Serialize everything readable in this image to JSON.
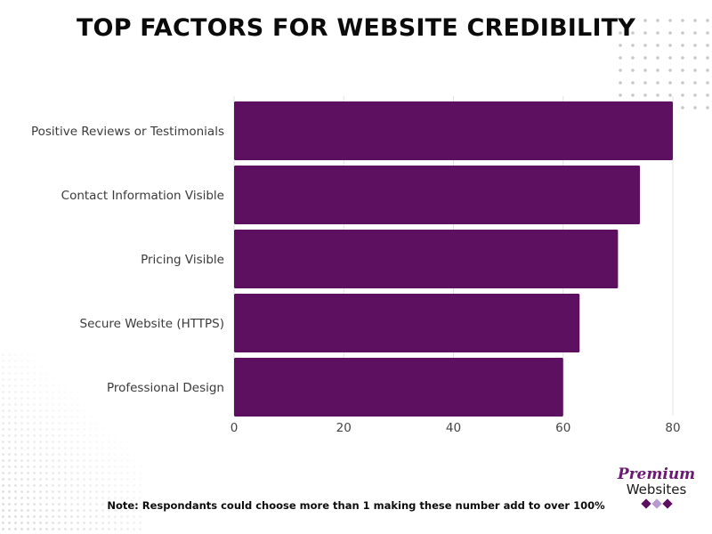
{
  "title": "TOP FACTORS FOR WEBSITE CREDIBILITY",
  "note": "Note: Respondants could choose more than 1 making these number add to over 100%",
  "logo": {
    "line1": "Premium",
    "line2": "Websites",
    "diamond_colors": [
      "#5e1060",
      "#b79ad0",
      "#5e1060"
    ]
  },
  "colors": {
    "bar": "#5e1060",
    "grid": "#e3e3e3",
    "axis_text": "#444444"
  },
  "chart_data": {
    "type": "bar",
    "orientation": "horizontal",
    "categories": [
      "Positive Reviews or Testimonials",
      "Contact Information Visible",
      "Pricing Visible",
      "Secure Website (HTTPS)",
      "Professional Design"
    ],
    "values": [
      80,
      74,
      70,
      63,
      60
    ],
    "xlim": [
      0,
      82
    ],
    "xticks": [
      0,
      20,
      40,
      60,
      80
    ],
    "xlabel": "",
    "ylabel": "",
    "grid": "vertical",
    "legend": "none"
  }
}
